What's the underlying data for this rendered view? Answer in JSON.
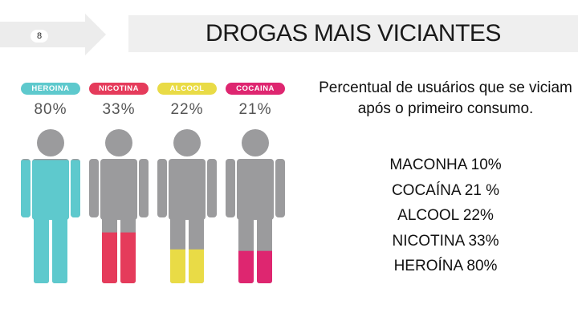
{
  "slide": {
    "number": "8",
    "title": "DROGAS MAIS VICIANTES"
  },
  "infographic": {
    "figures": [
      {
        "label": "HEROINA",
        "percent": "80%",
        "value": 0.8,
        "color": "#5ec9cd"
      },
      {
        "label": "NICOTINA",
        "percent": "33%",
        "value": 0.33,
        "color": "#e53b5b"
      },
      {
        "label": "ALCOOL",
        "percent": "22%",
        "value": 0.22,
        "color": "#e9db46"
      },
      {
        "label": "COCAINA",
        "percent": "21%",
        "value": 0.21,
        "color": "#de2670"
      }
    ],
    "empty_color": "#9b9b9d"
  },
  "text": {
    "subtitle": "Percentual de usuários que se viciam após o primeiro consumo.",
    "stats": [
      "MACONHA 10%",
      "COCAÍNA 21 %",
      "ALCOOL 22%",
      "NICOTINA 33%",
      "HEROÍNA 80%"
    ]
  }
}
